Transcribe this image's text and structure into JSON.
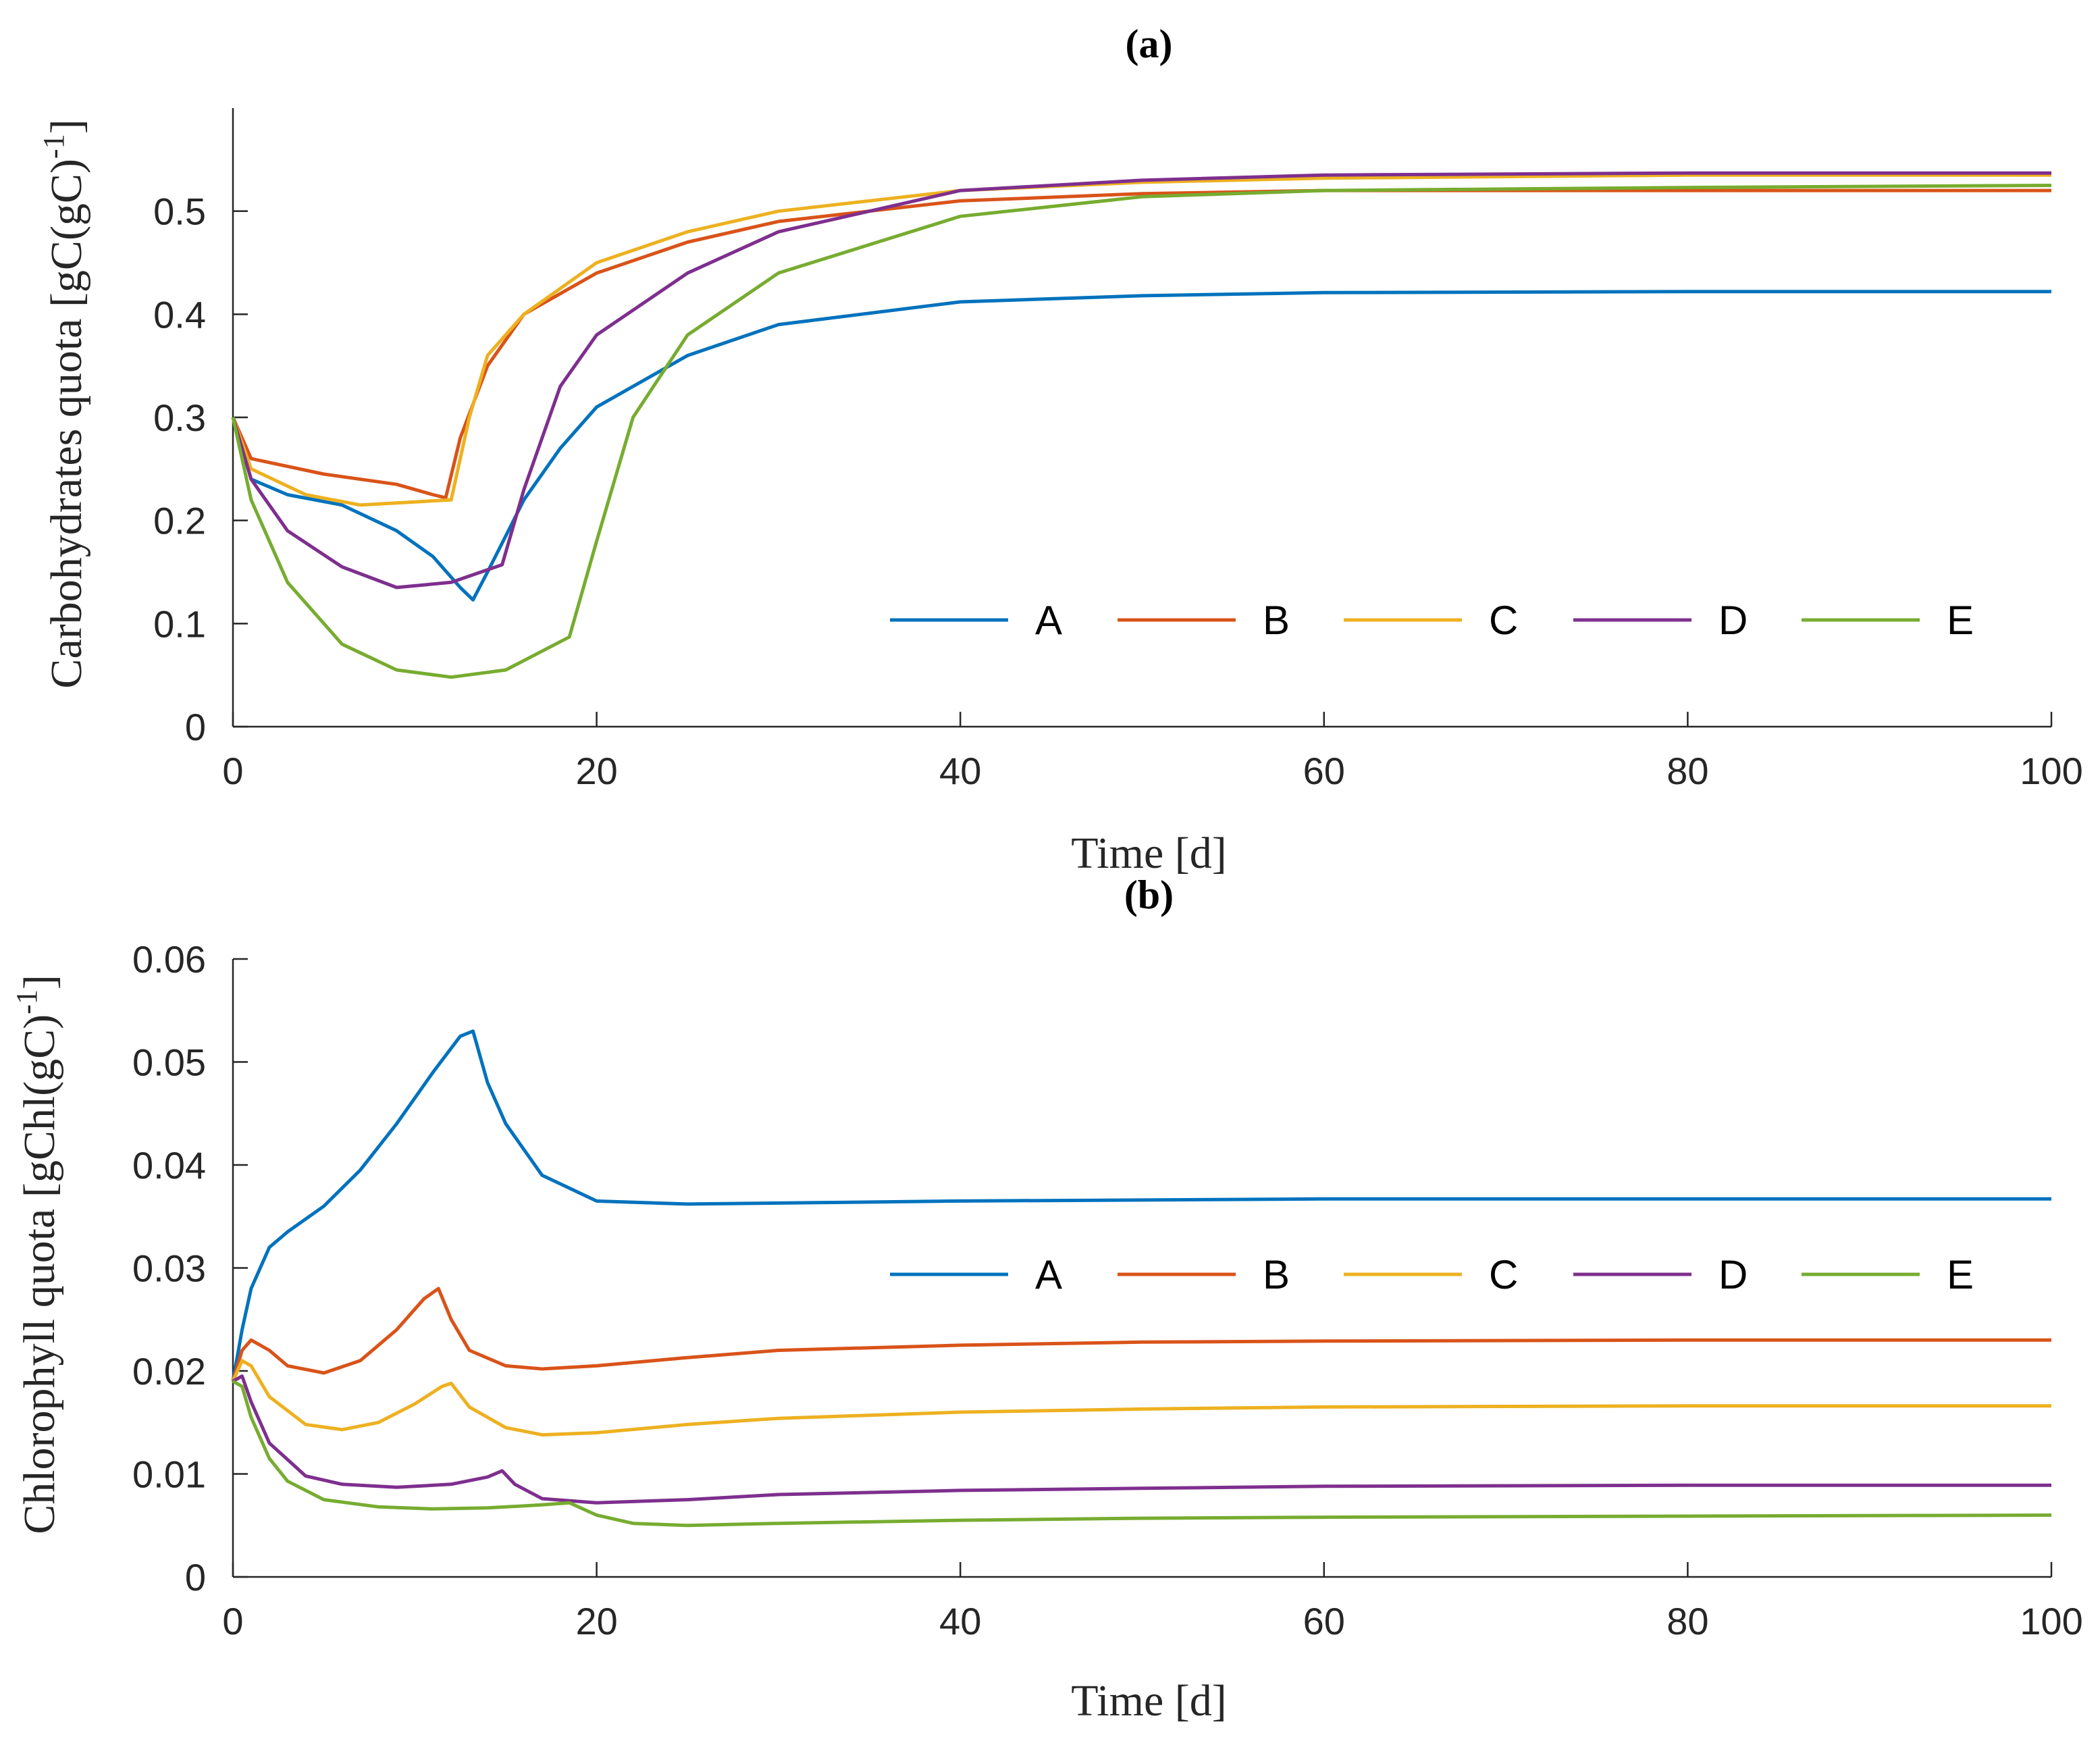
{
  "chart_data": [
    {
      "type": "line",
      "title": "(a)",
      "xlabel": "Time [d]",
      "ylabel": "Carbohydrates quota [gC(gC)",
      "ylabel_sup": "-1",
      "ylabel_end": "]",
      "xlim": [
        0,
        100
      ],
      "ylim": [
        0,
        0.6
      ],
      "xticks": [
        0,
        20,
        40,
        60,
        80,
        100
      ],
      "yticks": [
        0,
        0.1,
        0.2,
        0.3,
        0.4,
        0.5
      ],
      "xtick_labels": [
        "0",
        "20",
        "40",
        "60",
        "80",
        "100"
      ],
      "ytick_labels": [
        "0",
        "0.1",
        "0.2",
        "0.3",
        "0.4",
        "0.5"
      ],
      "legend": "upper-right-inside, horizontal",
      "series": [
        {
          "name": "A",
          "color": "#0072BD",
          "x": [
            0,
            1,
            3,
            6,
            9,
            11,
            12.5,
            13.2,
            14,
            15,
            16,
            18,
            20,
            25,
            30,
            40,
            50,
            60,
            80,
            100
          ],
          "y": [
            0.3,
            0.24,
            0.225,
            0.215,
            0.19,
            0.165,
            0.135,
            0.123,
            0.15,
            0.185,
            0.22,
            0.27,
            0.31,
            0.36,
            0.39,
            0.412,
            0.418,
            0.421,
            0.422,
            0.422
          ]
        },
        {
          "name": "B",
          "color": "#D95319",
          "x": [
            0,
            1,
            5,
            9,
            11,
            11.7,
            12.5,
            14,
            16,
            20,
            25,
            30,
            40,
            50,
            60,
            80,
            100
          ],
          "y": [
            0.3,
            0.26,
            0.245,
            0.235,
            0.225,
            0.222,
            0.28,
            0.35,
            0.4,
            0.44,
            0.47,
            0.49,
            0.51,
            0.517,
            0.52,
            0.52,
            0.52
          ]
        },
        {
          "name": "C",
          "color": "#EDB120",
          "x": [
            0,
            1,
            4,
            7,
            10,
            12,
            13,
            14,
            16,
            20,
            25,
            30,
            40,
            50,
            60,
            80,
            100
          ],
          "y": [
            0.3,
            0.25,
            0.225,
            0.215,
            0.218,
            0.22,
            0.3,
            0.36,
            0.4,
            0.45,
            0.48,
            0.5,
            0.52,
            0.528,
            0.532,
            0.535,
            0.535
          ]
        },
        {
          "name": "D",
          "color": "#7E2F8E",
          "x": [
            0,
            1,
            3,
            6,
            9,
            12,
            14.8,
            16,
            18,
            20,
            25,
            30,
            40,
            50,
            60,
            80,
            100
          ],
          "y": [
            0.3,
            0.24,
            0.19,
            0.155,
            0.135,
            0.14,
            0.157,
            0.23,
            0.33,
            0.38,
            0.44,
            0.48,
            0.52,
            0.53,
            0.535,
            0.537,
            0.537
          ]
        },
        {
          "name": "E",
          "color": "#77AC30",
          "x": [
            0,
            1,
            3,
            6,
            9,
            12,
            15,
            18.5,
            20,
            22,
            25,
            30,
            40,
            50,
            60,
            80,
            100
          ],
          "y": [
            0.3,
            0.22,
            0.14,
            0.08,
            0.055,
            0.048,
            0.055,
            0.087,
            0.18,
            0.3,
            0.38,
            0.44,
            0.495,
            0.514,
            0.52,
            0.523,
            0.525
          ]
        }
      ]
    },
    {
      "type": "line",
      "title": "(b)",
      "xlabel": "Time [d]",
      "ylabel": "Chlorophyll quota [gChl(gC)",
      "ylabel_sup": "-1",
      "ylabel_end": "]",
      "xlim": [
        0,
        100
      ],
      "ylim": [
        0,
        0.06
      ],
      "xticks": [
        0,
        20,
        40,
        60,
        80,
        100
      ],
      "yticks": [
        0,
        0.01,
        0.02,
        0.03,
        0.04,
        0.05,
        0.06
      ],
      "xtick_labels": [
        "0",
        "20",
        "40",
        "60",
        "80",
        "100"
      ],
      "ytick_labels": [
        "0",
        "0.01",
        "0.02",
        "0.03",
        "0.04",
        "0.05",
        "0.06"
      ],
      "legend": "middle-right-inside, horizontal",
      "series": [
        {
          "name": "A",
          "color": "#0072BD",
          "x": [
            0,
            0.5,
            1,
            2,
            3,
            5,
            7,
            9,
            11,
            12.5,
            13.2,
            14,
            15,
            17,
            20,
            25,
            30,
            40,
            60,
            80,
            100
          ],
          "y": [
            0.019,
            0.024,
            0.028,
            0.032,
            0.0335,
            0.036,
            0.0395,
            0.044,
            0.049,
            0.0525,
            0.053,
            0.048,
            0.044,
            0.039,
            0.0365,
            0.0362,
            0.0363,
            0.0365,
            0.0367,
            0.0367,
            0.0367
          ]
        },
        {
          "name": "B",
          "color": "#D95319",
          "x": [
            0,
            0.5,
            1,
            2,
            3,
            5,
            7,
            9,
            10.5,
            11.3,
            12,
            13,
            15,
            17,
            20,
            25,
            30,
            40,
            50,
            60,
            80,
            100
          ],
          "y": [
            0.019,
            0.022,
            0.023,
            0.022,
            0.0205,
            0.0198,
            0.021,
            0.024,
            0.027,
            0.028,
            0.025,
            0.022,
            0.0205,
            0.0202,
            0.0205,
            0.0213,
            0.022,
            0.0225,
            0.0228,
            0.0229,
            0.023,
            0.023
          ]
        },
        {
          "name": "C",
          "color": "#EDB120",
          "x": [
            0,
            0.5,
            1,
            2,
            4,
            6,
            8,
            10,
            11.5,
            12,
            13,
            15,
            17,
            20,
            25,
            30,
            40,
            50,
            60,
            80,
            100
          ],
          "y": [
            0.019,
            0.021,
            0.0205,
            0.0175,
            0.0148,
            0.0143,
            0.015,
            0.0168,
            0.0185,
            0.0188,
            0.0165,
            0.0145,
            0.0138,
            0.014,
            0.0148,
            0.0154,
            0.016,
            0.0163,
            0.0165,
            0.0166,
            0.0166
          ]
        },
        {
          "name": "D",
          "color": "#7E2F8E",
          "x": [
            0,
            0.5,
            1,
            2,
            4,
            6,
            9,
            12,
            14,
            14.8,
            15.5,
            17,
            20,
            25,
            30,
            40,
            50,
            60,
            80,
            100
          ],
          "y": [
            0.019,
            0.0195,
            0.017,
            0.013,
            0.0098,
            0.009,
            0.0087,
            0.009,
            0.0097,
            0.0103,
            0.009,
            0.0076,
            0.0072,
            0.0075,
            0.008,
            0.0084,
            0.0086,
            0.0088,
            0.0089,
            0.0089
          ]
        },
        {
          "name": "E",
          "color": "#77AC30",
          "x": [
            0,
            0.5,
            1,
            2,
            3,
            5,
            8,
            11,
            14,
            17,
            18.5,
            20,
            22,
            25,
            30,
            40,
            50,
            60,
            80,
            100
          ],
          "y": [
            0.019,
            0.0185,
            0.0155,
            0.0115,
            0.0093,
            0.0075,
            0.0068,
            0.0066,
            0.0067,
            0.007,
            0.0072,
            0.006,
            0.0052,
            0.005,
            0.0052,
            0.0055,
            0.0057,
            0.0058,
            0.0059,
            0.006
          ]
        }
      ]
    }
  ]
}
